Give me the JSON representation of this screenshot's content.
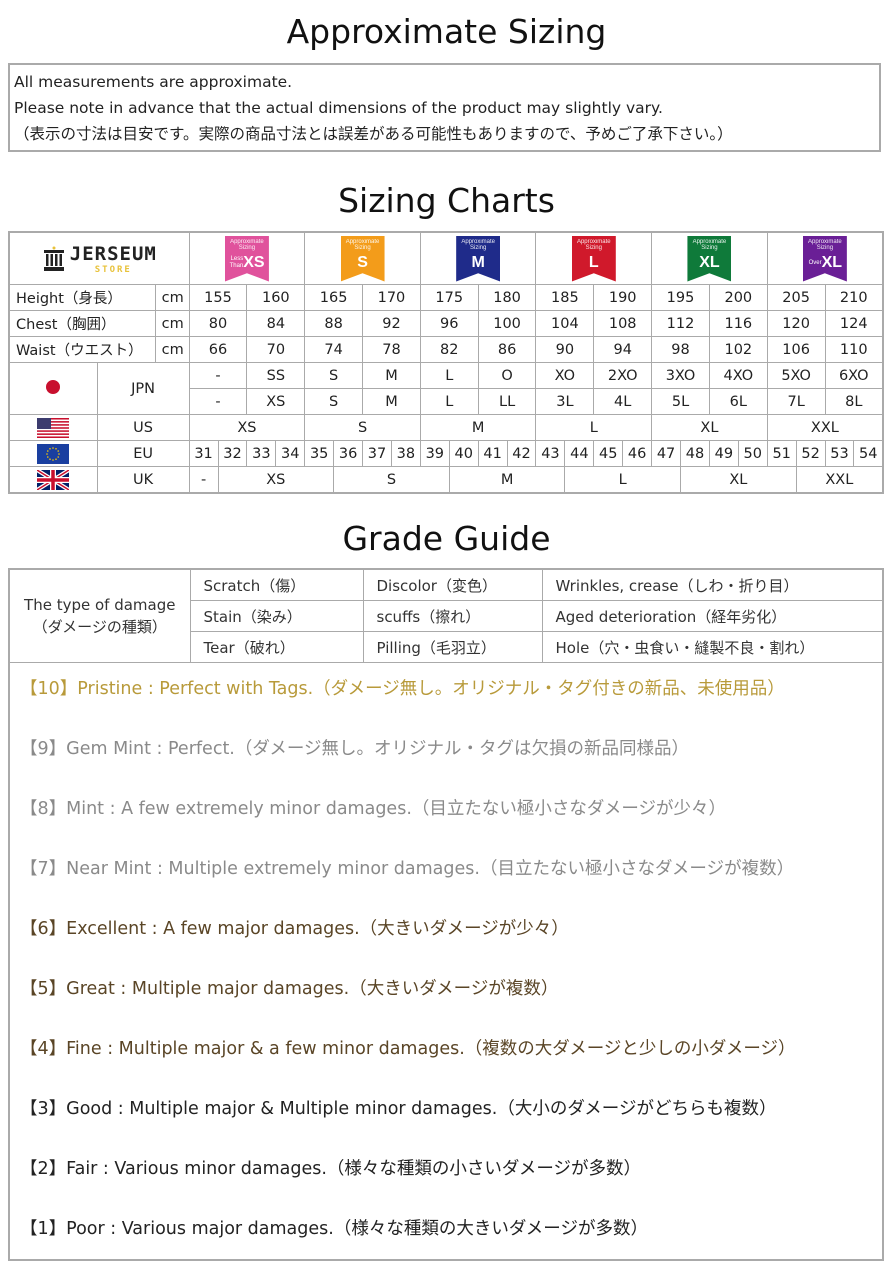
{
  "titles": {
    "approx": "Approximate Sizing",
    "charts": "Sizing Charts",
    "grade": "Grade Guide"
  },
  "notice": [
    "All measurements are approximate.",
    "Please note in advance that the actual dimensions of the product may slightly vary.",
    "（表示の寸法は目安です。実際の商品寸法とは誤差がある可能性もありますので、予めご了承下さい。）"
  ],
  "logo": {
    "text": "JERSEUM",
    "sub": "STORE"
  },
  "badges": [
    {
      "top": "Approximate Sizing",
      "pre": "Less Than",
      "size": "XS",
      "color": "#e0529c"
    },
    {
      "top": "Approximate Sizing",
      "pre": "",
      "size": "S",
      "color": "#f39c1a"
    },
    {
      "top": "Approximate Sizing",
      "pre": "",
      "size": "M",
      "color": "#1f2b8a"
    },
    {
      "top": "Approximate Sizing",
      "pre": "",
      "size": "L",
      "color": "#d0192b"
    },
    {
      "top": "Approximate Sizing",
      "pre": "",
      "size": "XL",
      "color": "#0f7a3a"
    },
    {
      "top": "Approximate Sizing",
      "pre": "Over",
      "size": "XL",
      "color": "#6a1f96"
    }
  ],
  "measures": [
    {
      "label": "Height（身長）",
      "unit": "cm",
      "values": [
        "155",
        "160",
        "165",
        "170",
        "175",
        "180",
        "185",
        "190",
        "195",
        "200",
        "205",
        "210"
      ]
    },
    {
      "label": "Chest（胸囲）",
      "unit": "cm",
      "values": [
        "80",
        "84",
        "88",
        "92",
        "96",
        "100",
        "104",
        "108",
        "112",
        "116",
        "120",
        "124"
      ]
    },
    {
      "label": "Waist（ウエスト）",
      "unit": "cm",
      "values": [
        "66",
        "70",
        "74",
        "78",
        "82",
        "86",
        "90",
        "94",
        "98",
        "102",
        "106",
        "110"
      ]
    }
  ],
  "jpn": {
    "label": "JPN",
    "row1": [
      "-",
      "SS",
      "S",
      "M",
      "L",
      "O",
      "XO",
      "2XO",
      "3XO",
      "4XO",
      "5XO",
      "6XO"
    ],
    "row2": [
      "-",
      "XS",
      "S",
      "M",
      "L",
      "LL",
      "3L",
      "4L",
      "5L",
      "6L",
      "7L",
      "8L"
    ]
  },
  "us": {
    "label": "US",
    "values": [
      "XS",
      "S",
      "M",
      "L",
      "XL",
      "XXL"
    ]
  },
  "eu": {
    "label": "EU",
    "values": [
      "31",
      "32",
      "33",
      "34",
      "35",
      "36",
      "37",
      "38",
      "39",
      "40",
      "41",
      "42",
      "43",
      "44",
      "45",
      "46",
      "47",
      "48",
      "49",
      "50",
      "51",
      "52",
      "53",
      "54"
    ]
  },
  "uk": {
    "label": "UK",
    "values": [
      "-",
      "XS",
      "S",
      "M",
      "L",
      "XL",
      "XXL"
    ]
  },
  "damage": {
    "type_label": "The type of damage",
    "type_label_jp": "（ダメージの種類）",
    "rows": [
      [
        "Scratch（傷）",
        "Discolor（変色）",
        "Wrinkles, crease（しわ・折り目）"
      ],
      [
        "Stain（染み）",
        "scuffs（擦れ）",
        "Aged deterioration（経年劣化）"
      ],
      [
        "Tear（破れ）",
        "Pilling（毛羽立）",
        "Hole（穴・虫食い・縫製不良・割れ）"
      ]
    ]
  },
  "grades": [
    {
      "text": "【10】Pristine : Perfect with Tags.（ダメージ無し。オリジナル・タグ付きの新品、未使用品）",
      "color": "#b89a3a"
    },
    {
      "text": "【9】Gem Mint : Perfect.（ダメージ無し。オリジナル・タグは欠損の新品同様品）",
      "color": "#8a8a8a"
    },
    {
      "text": "【8】Mint : A few extremely minor damages.（目立たない極小さなダメージが少々）",
      "color": "#8a8a8a"
    },
    {
      "text": "【7】Near Mint : Multiple extremely minor damages.（目立たない極小さなダメージが複数）",
      "color": "#8a8a8a"
    },
    {
      "text": "【6】Excellent : A few major damages.（大きいダメージが少々）",
      "color": "#5a4526"
    },
    {
      "text": "【5】Great : Multiple major damages.（大きいダメージが複数）",
      "color": "#5a4526"
    },
    {
      "text": "【4】Fine : Multiple major & a few minor damages.（複数の大ダメージと少しの小ダメージ）",
      "color": "#5a4526"
    },
    {
      "text": "【3】Good : Multiple major & Multiple minor damages.（大小のダメージがどちらも複数）",
      "color": "#222222"
    },
    {
      "text": "【2】Fair : Various minor damages.（様々な種類の小さいダメージが多数）",
      "color": "#222222"
    },
    {
      "text": "【1】Poor : Various major damages.（様々な種類の大きいダメージが多数）",
      "color": "#222222"
    }
  ]
}
